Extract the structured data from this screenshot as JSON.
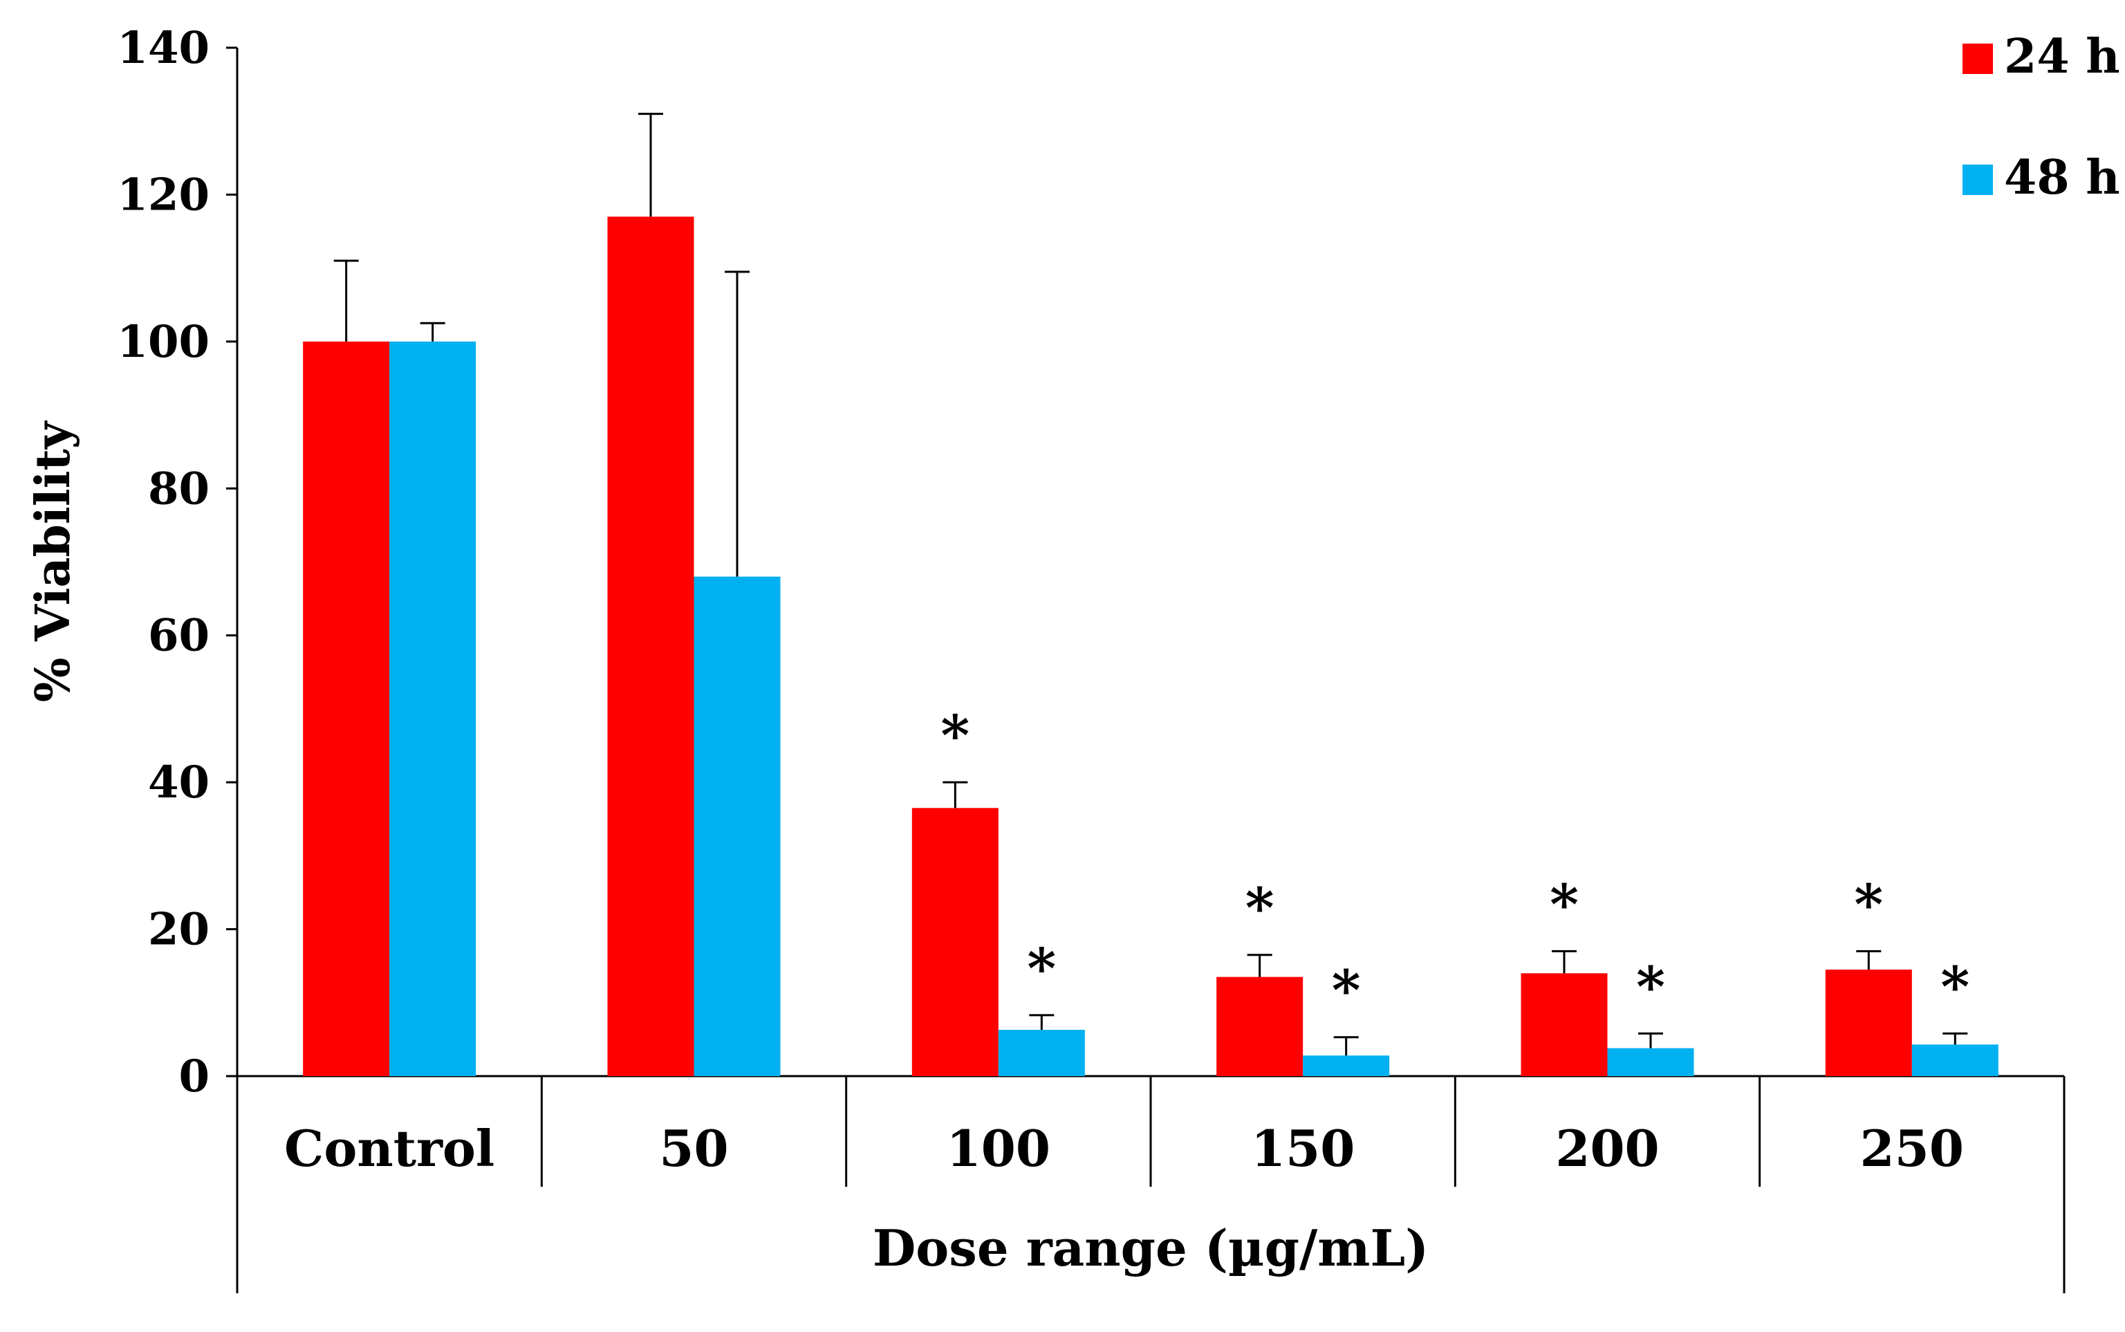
{
  "chart_data": {
    "type": "bar",
    "title": "",
    "xlabel": "Dose range (µg/mL)",
    "ylabel": "% Viability",
    "ylim": [
      0,
      140
    ],
    "yticks": [
      "0",
      "20",
      "40",
      "60",
      "80",
      "100",
      "120",
      "140"
    ],
    "grid": false,
    "legend_position": "top-right",
    "categories": [
      "Control",
      "50",
      "100",
      "150",
      "200",
      "250"
    ],
    "series": [
      {
        "name": "24 h",
        "color": "#FF0000",
        "values": [
          100,
          117,
          36.5,
          13.5,
          14,
          14.5
        ],
        "errors": [
          11,
          14,
          3.5,
          3,
          3,
          2.5
        ],
        "significance": [
          "",
          "",
          "*",
          "*",
          "*",
          "*"
        ]
      },
      {
        "name": "48 h",
        "color": "#00B0F0",
        "values": [
          100,
          68,
          6.3,
          2.8,
          3.8,
          4.3
        ],
        "errors": [
          2.5,
          41.5,
          2,
          2.5,
          2,
          1.5
        ],
        "significance": [
          "",
          "",
          "*",
          "*",
          "*",
          "*"
        ]
      }
    ]
  }
}
